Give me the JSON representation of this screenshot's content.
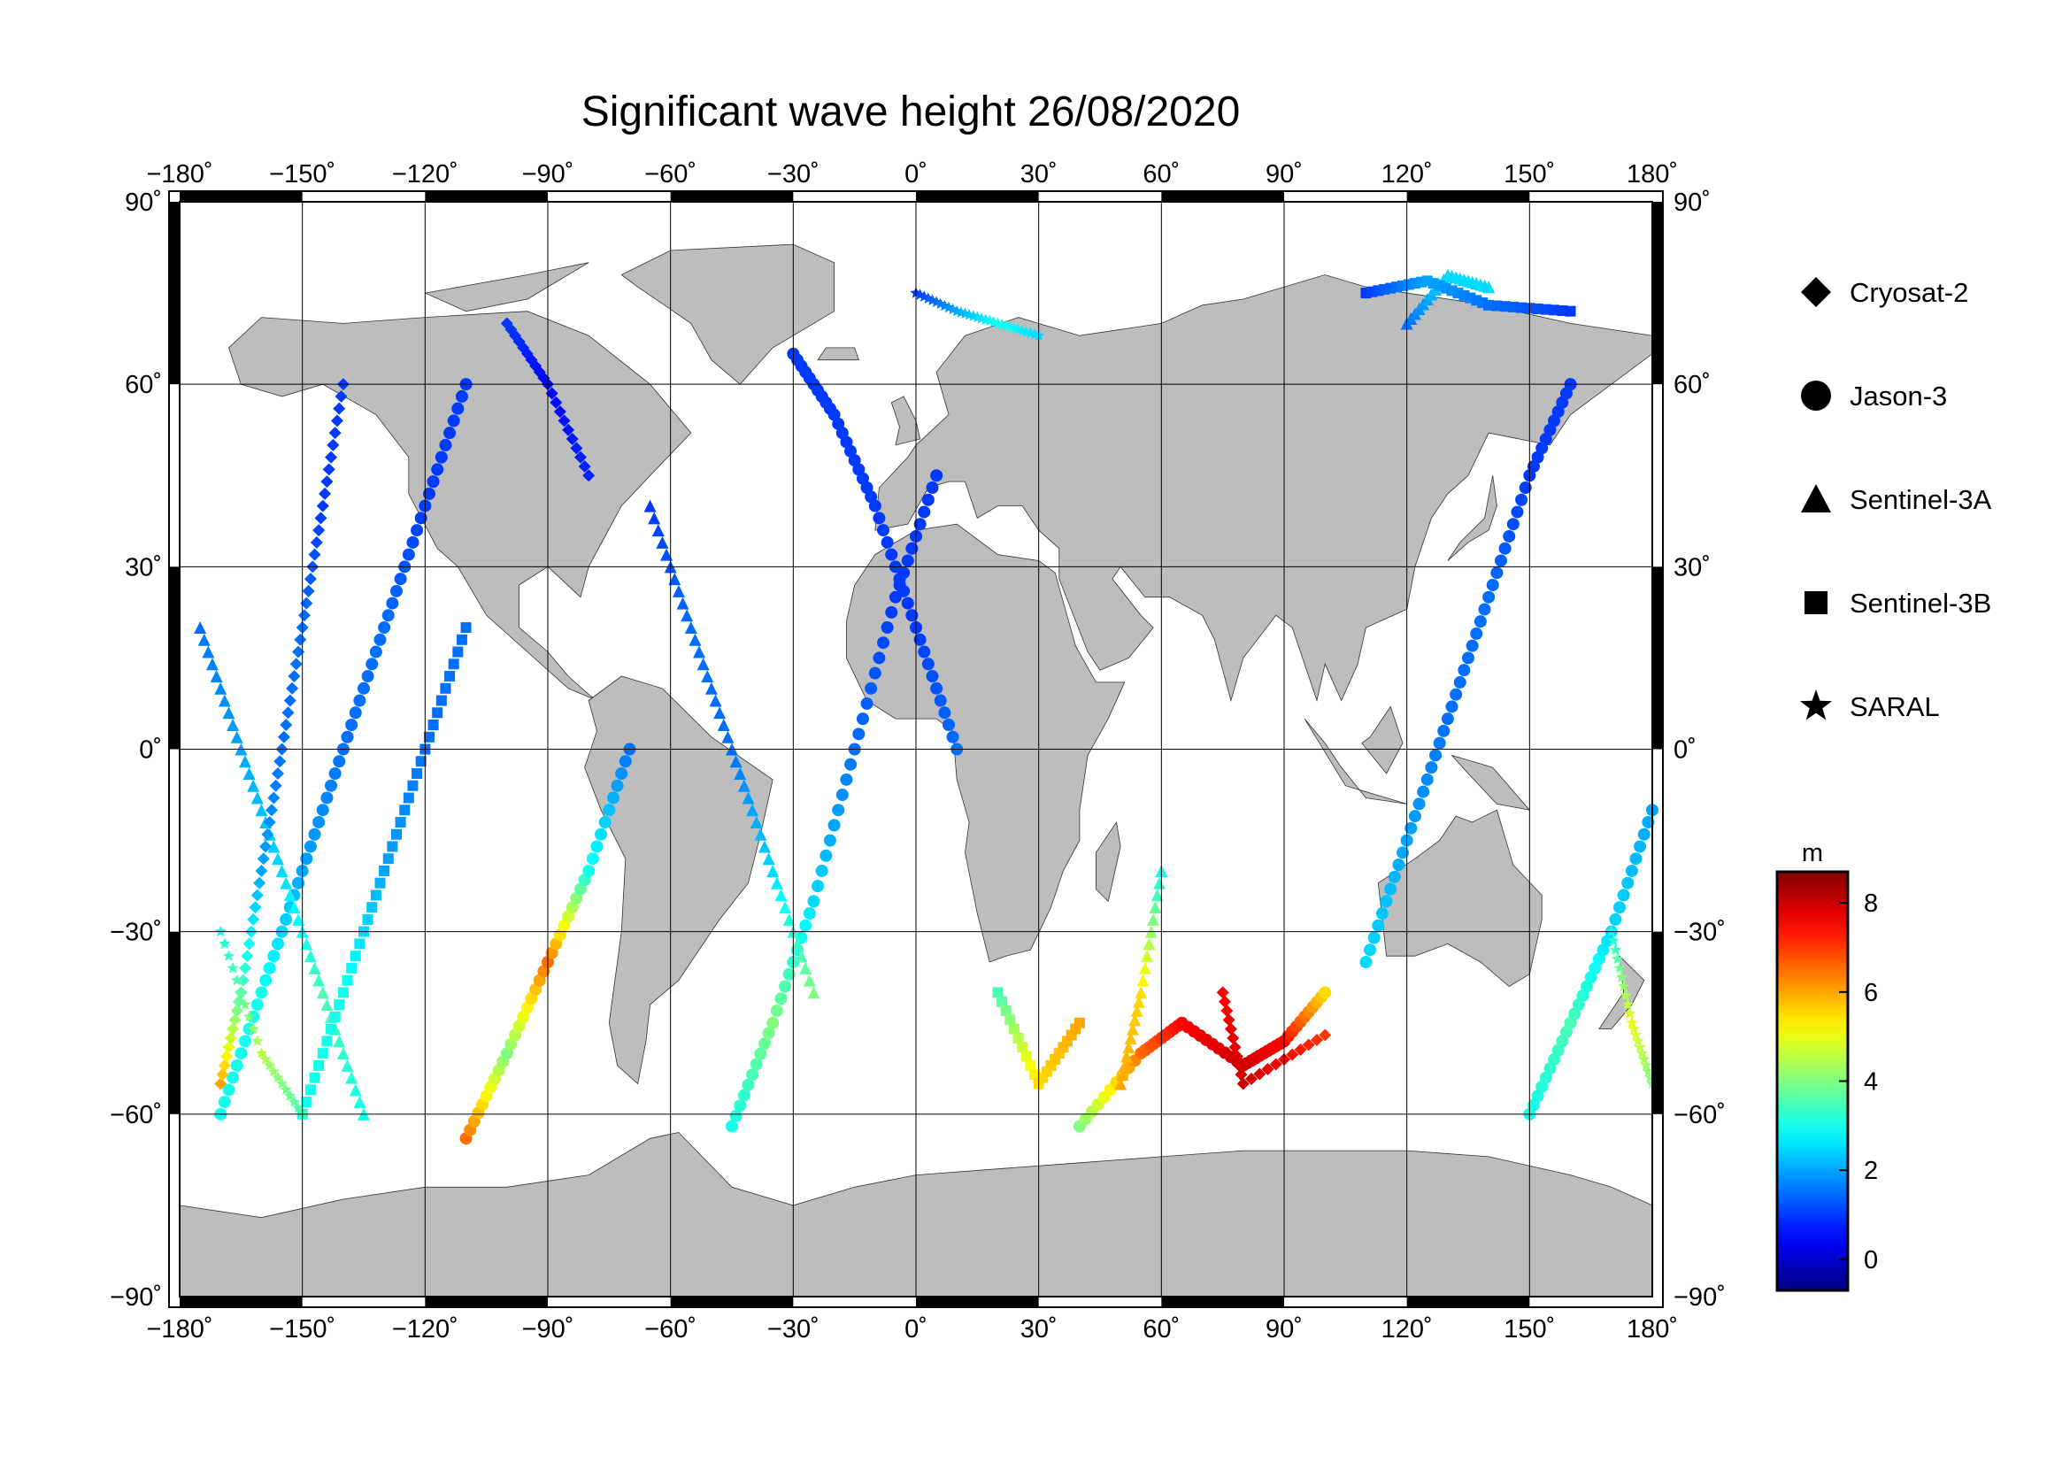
{
  "title": "Significant wave height 26/08/2020",
  "axes": {
    "lon_ticks": [
      -180,
      -150,
      -120,
      -90,
      -60,
      -30,
      0,
      30,
      60,
      90,
      120,
      150,
      180
    ],
    "lat_ticks": [
      90,
      60,
      30,
      0,
      -30,
      -60,
      -90
    ],
    "lon_labels": [
      "−180˚",
      "−150˚",
      "−120˚",
      "−90˚",
      "−60˚",
      "−30˚",
      "0˚",
      "30˚",
      "60˚",
      "90˚",
      "120˚",
      "150˚",
      "180˚"
    ],
    "lat_labels": [
      "90˚",
      "60˚",
      "30˚",
      "0˚",
      "−30˚",
      "−60˚",
      "−90˚"
    ],
    "lon_range": [
      -180,
      180
    ],
    "lat_range": [
      -90,
      90
    ]
  },
  "legend": {
    "placement": "right",
    "items": [
      {
        "label": "Cryosat-2",
        "symbol": "diamond"
      },
      {
        "label": "Jason-3",
        "symbol": "circle"
      },
      {
        "label": "Sentinel-3A",
        "symbol": "triangle"
      },
      {
        "label": "Sentinel-3B",
        "symbol": "square"
      },
      {
        "label": "SARAL",
        "symbol": "star"
      }
    ]
  },
  "colorbar": {
    "unit": "m",
    "range": [
      -0.7,
      8.7
    ],
    "ticks": [
      0,
      2,
      4,
      6,
      8
    ],
    "tick_labels": [
      "0",
      "2",
      "4",
      "6",
      "8"
    ],
    "colormap": "jet"
  },
  "chart_data": {
    "type": "scatter",
    "title": "Significant wave height 26/08/2020",
    "x_variable": "longitude (degrees)",
    "y_variable": "latitude (degrees)",
    "color_variable": "significant wave height (m)",
    "xlim": [
      -180,
      180
    ],
    "ylim": [
      -90,
      90
    ],
    "grid": true,
    "tracks": [
      {
        "satellite": "Jason-3",
        "points": [
          [
            -170,
            -60,
            3.0
          ],
          [
            -160,
            -40,
            3.0
          ],
          [
            -150,
            -20,
            2.0
          ],
          [
            -140,
            0,
            1.5
          ],
          [
            -130,
            20,
            1.5
          ],
          [
            -120,
            40,
            1.0
          ],
          [
            -110,
            60,
            1.0
          ]
        ]
      },
      {
        "satellite": "Jason-3",
        "points": [
          [
            -110,
            -64,
            6.5
          ],
          [
            -100,
            -50,
            4.0
          ],
          [
            -90,
            -35,
            6.5
          ],
          [
            -80,
            -20,
            3.0
          ],
          [
            -70,
            0,
            1.5
          ]
        ]
      },
      {
        "satellite": "Jason-3",
        "points": [
          [
            -45,
            -62,
            3.0
          ],
          [
            -35,
            -45,
            4.0
          ],
          [
            -25,
            -25,
            2.5
          ],
          [
            -15,
            0,
            1.5
          ],
          [
            -5,
            25,
            1.0
          ],
          [
            5,
            45,
            1.0
          ]
        ]
      },
      {
        "satellite": "Jason-3",
        "points": [
          [
            -30,
            65,
            1.0
          ],
          [
            -20,
            55,
            1.0
          ],
          [
            -10,
            40,
            1.0
          ],
          [
            0,
            20,
            1.0
          ],
          [
            10,
            0,
            1.5
          ]
        ]
      },
      {
        "satellite": "Jason-3",
        "points": [
          [
            40,
            -62,
            4.0
          ],
          [
            55,
            -50,
            6.5
          ],
          [
            65,
            -45,
            7.5
          ],
          [
            80,
            -52,
            8.0
          ],
          [
            90,
            -48,
            7.5
          ],
          [
            100,
            -40,
            5.5
          ]
        ]
      },
      {
        "satellite": "Jason-3",
        "points": [
          [
            110,
            -35,
            2.5
          ],
          [
            120,
            -15,
            2.0
          ],
          [
            130,
            5,
            1.5
          ],
          [
            140,
            25,
            1.5
          ],
          [
            150,
            45,
            1.0
          ],
          [
            160,
            60,
            1.0
          ]
        ]
      },
      {
        "satellite": "Jason-3",
        "points": [
          [
            150,
            -60,
            3.0
          ],
          [
            160,
            -45,
            3.5
          ],
          [
            170,
            -30,
            2.5
          ],
          [
            180,
            -10,
            2.0
          ]
        ]
      },
      {
        "satellite": "Sentinel-3A",
        "points": [
          [
            -175,
            20,
            1.5
          ],
          [
            -165,
            0,
            2.0
          ],
          [
            -155,
            -20,
            2.5
          ],
          [
            -145,
            -40,
            3.5
          ],
          [
            -135,
            -60,
            3.0
          ]
        ]
      },
      {
        "satellite": "Sentinel-3A",
        "points": [
          [
            -65,
            40,
            1.0
          ],
          [
            -55,
            20,
            1.5
          ],
          [
            -45,
            0,
            1.5
          ],
          [
            -35,
            -20,
            2.5
          ],
          [
            -25,
            -40,
            4.0
          ]
        ]
      },
      {
        "satellite": "Sentinel-3A",
        "points": [
          [
            60,
            -20,
            3.0
          ],
          [
            55,
            -40,
            5.5
          ],
          [
            50,
            -55,
            6.0
          ]
        ]
      },
      {
        "satellite": "Sentinel-3A",
        "points": [
          [
            120,
            70,
            1.5
          ],
          [
            130,
            78,
            2.5
          ],
          [
            140,
            76,
            2.5
          ]
        ]
      },
      {
        "satellite": "Sentinel-3B",
        "points": [
          [
            -150,
            -60,
            3.0
          ],
          [
            -140,
            -40,
            3.0
          ],
          [
            -130,
            -20,
            2.0
          ],
          [
            -120,
            0,
            1.5
          ],
          [
            -110,
            20,
            1.5
          ]
        ]
      },
      {
        "satellite": "Sentinel-3B",
        "points": [
          [
            20,
            -40,
            3.5
          ],
          [
            30,
            -55,
            5.5
          ],
          [
            40,
            -45,
            6.0
          ]
        ]
      },
      {
        "satellite": "Sentinel-3B",
        "points": [
          [
            110,
            75,
            1.0
          ],
          [
            125,
            77,
            2.0
          ],
          [
            140,
            73,
            1.5
          ],
          [
            160,
            72,
            1.0
          ]
        ]
      },
      {
        "satellite": "Cryosat-2",
        "points": [
          [
            -170,
            -55,
            6.0
          ],
          [
            -165,
            -40,
            3.5
          ],
          [
            -160,
            -20,
            2.0
          ],
          [
            -155,
            0,
            1.5
          ],
          [
            -150,
            20,
            1.5
          ],
          [
            -145,
            40,
            1.0
          ],
          [
            -140,
            60,
            1.0
          ]
        ]
      },
      {
        "satellite": "Cryosat-2",
        "points": [
          [
            -100,
            70,
            1.0
          ],
          [
            -90,
            60,
            0.5
          ],
          [
            -80,
            45,
            0.8
          ]
        ]
      },
      {
        "satellite": "Cryosat-2",
        "points": [
          [
            75,
            -40,
            7.5
          ],
          [
            80,
            -55,
            8.0
          ],
          [
            100,
            -47,
            7.0
          ]
        ]
      },
      {
        "satellite": "SARAL",
        "points": [
          [
            0,
            75,
            1.0
          ],
          [
            10,
            72,
            2.0
          ],
          [
            20,
            70,
            3.0
          ],
          [
            30,
            68,
            2.5
          ]
        ]
      },
      {
        "satellite": "SARAL",
        "points": [
          [
            -170,
            -30,
            3.0
          ],
          [
            -160,
            -50,
            4.5
          ],
          [
            -150,
            -60,
            3.5
          ]
        ]
      },
      {
        "satellite": "SARAL",
        "points": [
          [
            170,
            -30,
            3.0
          ],
          [
            175,
            -45,
            5.0
          ],
          [
            180,
            -55,
            4.0
          ]
        ]
      }
    ]
  }
}
